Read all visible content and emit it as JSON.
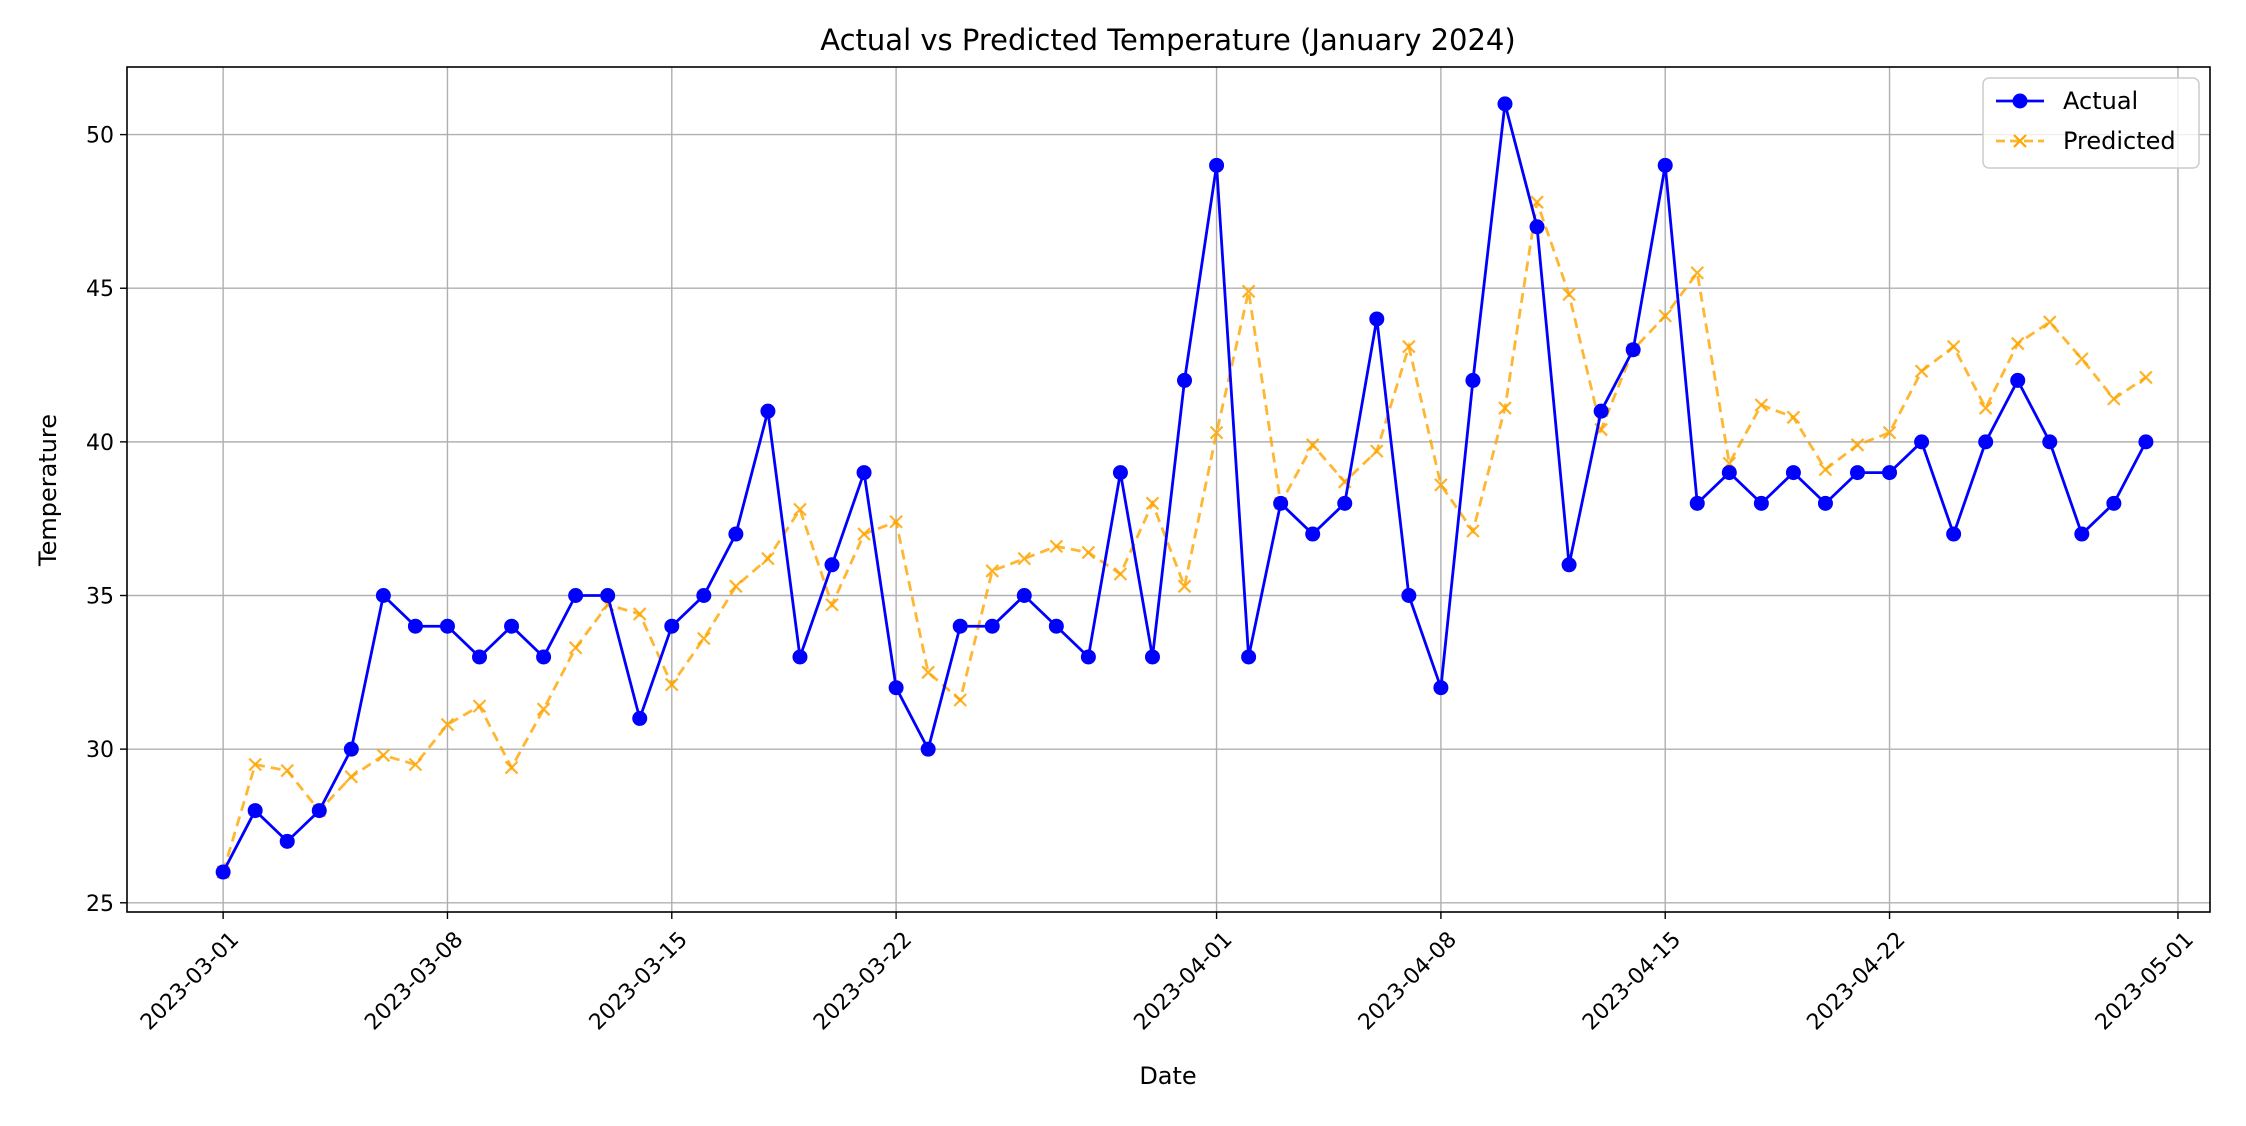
{
  "chart_data": {
    "type": "line",
    "title": "Actual vs Predicted Temperature (January 2024)",
    "xlabel": "Date",
    "ylabel": "Temperature",
    "x_start": "2023-03-01",
    "xlim": [
      "2023-02-26",
      "2023-05-02"
    ],
    "ylim": [
      24.7,
      52.2
    ],
    "x_ticks": [
      "2023-03-01",
      "2023-03-08",
      "2023-03-15",
      "2023-03-22",
      "2023-04-01",
      "2023-04-08",
      "2023-04-15",
      "2023-04-22",
      "2023-05-01"
    ],
    "y_ticks": [
      25,
      30,
      35,
      40,
      45,
      50
    ],
    "grid": true,
    "legend_position": "top-right",
    "series": [
      {
        "name": "Actual",
        "color": "#0000ff",
        "line_style": "solid",
        "marker": "circle",
        "values": [
          26,
          28,
          27,
          28,
          30,
          35,
          34,
          34,
          33,
          34,
          33,
          35,
          35,
          31,
          34,
          35,
          37,
          41,
          33,
          36,
          39,
          32,
          30,
          34,
          34,
          35,
          34,
          33,
          39,
          33,
          42,
          49,
          33,
          38,
          37,
          38,
          44,
          35,
          32,
          42,
          51,
          47,
          36,
          41,
          43,
          49,
          38,
          39,
          38,
          39,
          38,
          39,
          39,
          40,
          37,
          40,
          42,
          40,
          37,
          38,
          40
        ]
      },
      {
        "name": "Predicted",
        "color": "#ffa500",
        "line_style": "dashed",
        "marker": "x",
        "values": [
          26.0,
          29.5,
          29.3,
          28.0,
          29.1,
          29.8,
          29.5,
          30.8,
          31.4,
          29.4,
          31.3,
          33.3,
          34.7,
          34.4,
          32.1,
          33.6,
          35.3,
          36.2,
          37.8,
          34.7,
          37.0,
          37.4,
          32.5,
          31.6,
          35.8,
          36.2,
          36.6,
          36.4,
          35.7,
          38.0,
          35.3,
          40.3,
          44.9,
          38.0,
          39.9,
          38.7,
          39.7,
          43.1,
          38.6,
          37.1,
          41.1,
          47.8,
          44.8,
          40.4,
          43.0,
          44.1,
          45.5,
          39.3,
          41.2,
          40.8,
          39.1,
          39.9,
          40.3,
          42.3,
          43.1,
          41.1,
          43.2,
          43.9,
          42.7,
          41.4,
          42.1
        ]
      }
    ]
  }
}
